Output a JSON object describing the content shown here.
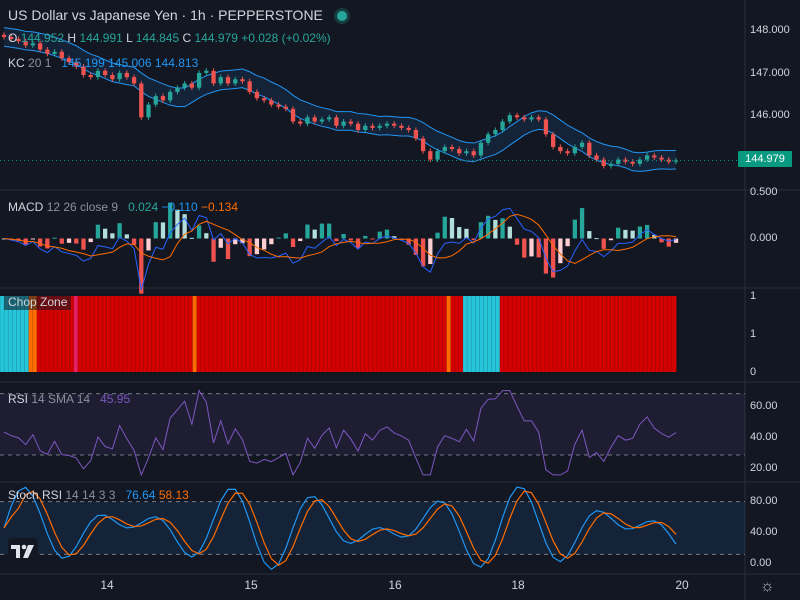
{
  "header": {
    "title": "US Dollar vs Japanese Yen · 1h · PEPPERSTONE",
    "ohlc": {
      "o_label": "O",
      "o": "144.952",
      "h_label": "H",
      "h": "144.991",
      "l_label": "L",
      "l": "144.845",
      "c_label": "C",
      "c": "144.979",
      "change": "+0.028 (+0.02%)"
    }
  },
  "indicators": {
    "kc": {
      "name": "KC",
      "params": "20 1",
      "upper": "145.199",
      "middle": "145.006",
      "lower": "144.813"
    },
    "macd": {
      "name": "MACD",
      "params": "12 26 close 9",
      "hist": "0.024",
      "macd": "−0.110",
      "signal": "−0.134"
    },
    "chop": {
      "name": "Chop Zone"
    },
    "rsi": {
      "name": "RSI",
      "params": "14 SMA 14",
      "value": "45.95"
    },
    "stoch": {
      "name": "Stoch RSI",
      "params": "14 14 3 3",
      "k": "76.64",
      "d": "58.13"
    }
  },
  "last_price": "144.979",
  "colors": {
    "up": "#26a69a",
    "down": "#ef5350",
    "kc": "#2196f3",
    "macd": "#2962ff",
    "signal": "#ff6d00",
    "rsi": "#7e57c2",
    "chop_red": "#d50000",
    "chop_cyan": "#26c6da",
    "chop_orange": "#ff6d00",
    "chop_pink": "#e91e63"
  },
  "yaxis": {
    "price": [
      "148.000",
      "147.000",
      "146.000"
    ],
    "macd": [
      "0.500",
      "0.000"
    ],
    "chop": [
      "1",
      "1",
      "0"
    ],
    "rsi": [
      "60.00",
      "40.00",
      "20.00"
    ],
    "stoch": [
      "80.00",
      "40.00",
      "0.00"
    ]
  },
  "xaxis": [
    "14",
    "15",
    "16",
    "18",
    "20"
  ],
  "chart_data": {
    "type": "line",
    "title": "US Dollar vs Japanese Yen · 1h · PEPPERSTONE",
    "price_range": [
      144.4,
      148.3
    ],
    "price_close": [
      147.9,
      147.85,
      147.8,
      147.7,
      147.75,
      147.6,
      147.5,
      147.55,
      147.4,
      147.3,
      147.2,
      147.0,
      146.95,
      147.1,
      147.0,
      146.9,
      147.05,
      146.95,
      146.8,
      146.0,
      146.3,
      146.5,
      146.4,
      146.6,
      146.7,
      146.8,
      146.7,
      147.05,
      147.1,
      146.8,
      146.95,
      146.8,
      146.9,
      146.85,
      146.6,
      146.45,
      146.4,
      146.3,
      146.25,
      146.2,
      145.9,
      145.85,
      146.0,
      145.9,
      145.95,
      146.0,
      145.8,
      145.9,
      145.85,
      145.7,
      145.8,
      145.75,
      145.8,
      145.85,
      145.8,
      145.75,
      145.7,
      145.5,
      145.2,
      145.0,
      145.2,
      145.3,
      145.25,
      145.15,
      145.2,
      145.1,
      145.4,
      145.6,
      145.7,
      145.9,
      146.05,
      146.0,
      145.95,
      146.0,
      145.95,
      145.6,
      145.3,
      145.2,
      145.15,
      145.3,
      145.4,
      145.1,
      145.0,
      144.85,
      144.9,
      145.0,
      144.95,
      144.9,
      145.0,
      145.1,
      145.05,
      145.0,
      144.95,
      144.98
    ],
    "kc_upper_range": [
      148.1,
      145.2
    ],
    "kc_lower_range": [
      147.4,
      144.8
    ],
    "macd_range": [
      -0.6,
      0.6
    ],
    "rsi_range": [
      15,
      75
    ],
    "rsi_bands": [
      70,
      30
    ],
    "stoch_range": [
      0,
      100
    ],
    "stoch_bands": [
      80,
      20
    ],
    "chop_zones": [
      "cyan",
      "cyan",
      "cyan",
      "cyan",
      "cyan",
      "cyan",
      "cyan",
      "orange",
      "orange",
      "red",
      "red",
      "red",
      "red",
      "red",
      "red",
      "red",
      "red",
      "red",
      "pink",
      "red",
      "red",
      "red",
      "red",
      "red",
      "red",
      "red",
      "red",
      "red",
      "red",
      "red",
      "red",
      "red",
      "red",
      "red",
      "red",
      "red",
      "red",
      "red",
      "red",
      "red",
      "red",
      "red",
      "red",
      "red",
      "red",
      "red",
      "red",
      "orange",
      "red",
      "red",
      "red",
      "red",
      "red",
      "red",
      "red",
      "red",
      "red",
      "red",
      "red",
      "red",
      "red",
      "red",
      "red",
      "red",
      "red",
      "red",
      "red",
      "red",
      "red",
      "red",
      "red",
      "red",
      "red",
      "red",
      "red",
      "red",
      "red",
      "red",
      "red",
      "red",
      "red",
      "red",
      "red",
      "red",
      "red",
      "red",
      "red",
      "red",
      "red",
      "red",
      "red",
      "red",
      "red",
      "red",
      "red",
      "red",
      "red",
      "red",
      "red",
      "red",
      "red",
      "red",
      "red",
      "red",
      "red",
      "red",
      "red",
      "red",
      "red",
      "orange",
      "red",
      "red",
      "red",
      "cyan",
      "cyan",
      "cyan",
      "cyan",
      "cyan",
      "cyan",
      "cyan",
      "cyan",
      "cyan",
      "red",
      "red",
      "red",
      "red",
      "red",
      "red",
      "red",
      "red",
      "red",
      "red",
      "red",
      "red",
      "red",
      "red",
      "red",
      "red",
      "red",
      "red",
      "red",
      "red",
      "red",
      "red",
      "red",
      "red",
      "red",
      "red",
      "red",
      "red",
      "red",
      "red",
      "red",
      "red",
      "red",
      "red",
      "red",
      "red",
      "red",
      "red",
      "red",
      "red",
      "red",
      "red",
      "red"
    ]
  }
}
